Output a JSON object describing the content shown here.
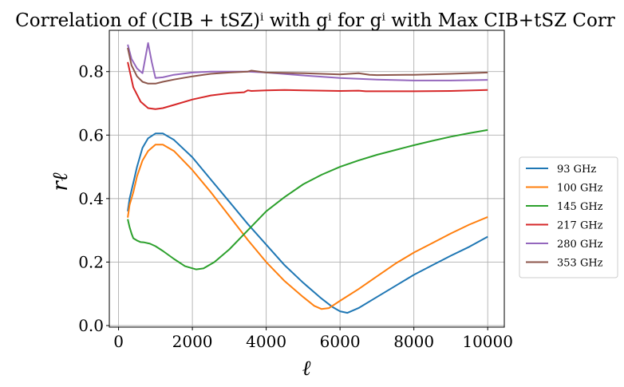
{
  "chart_data": {
    "type": "line",
    "title": "Correlation of (CIB + tSZ)ⁱ with gⁱ for gⁱ with Max CIB+tSZ Corr",
    "xlabel": "ℓ",
    "ylabel": "rℓ",
    "xlim": [
      -250,
      10450
    ],
    "ylim": [
      -0.005,
      0.93
    ],
    "xticks": [
      0,
      2000,
      4000,
      6000,
      8000,
      10000
    ],
    "xtick_labels": [
      "0",
      "2000",
      "4000",
      "6000",
      "8000",
      "10000"
    ],
    "yticks": [
      0.0,
      0.2,
      0.4,
      0.6,
      0.8
    ],
    "ytick_labels": [
      "0.0",
      "0.2",
      "0.4",
      "0.6",
      "0.8"
    ],
    "grid": true,
    "legend_position": "outside-right",
    "series": [
      {
        "name": "93 GHz",
        "color": "#1f77b4",
        "x": [
          250,
          300,
          400,
          500,
          650,
          800,
          1000,
          1200,
          1500,
          2000,
          2500,
          3000,
          3500,
          4000,
          4500,
          5000,
          5500,
          5800,
          6000,
          6200,
          6500,
          7000,
          7500,
          8000,
          8500,
          9000,
          9500,
          10000
        ],
        "y": [
          0.36,
          0.4,
          0.45,
          0.5,
          0.56,
          0.59,
          0.605,
          0.605,
          0.585,
          0.53,
          0.46,
          0.39,
          0.32,
          0.255,
          0.19,
          0.135,
          0.085,
          0.058,
          0.045,
          0.04,
          0.055,
          0.09,
          0.125,
          0.16,
          0.19,
          0.22,
          0.248,
          0.28
        ]
      },
      {
        "name": "100 GHz",
        "color": "#ff7f0e",
        "x": [
          250,
          300,
          400,
          500,
          650,
          800,
          1000,
          1200,
          1500,
          2000,
          2500,
          3000,
          3500,
          4000,
          4500,
          5000,
          5300,
          5500,
          5700,
          6000,
          6500,
          7000,
          7500,
          8000,
          8500,
          9000,
          9500,
          10000
        ],
        "y": [
          0.34,
          0.38,
          0.42,
          0.47,
          0.52,
          0.55,
          0.57,
          0.57,
          0.55,
          0.49,
          0.42,
          0.345,
          0.27,
          0.2,
          0.14,
          0.09,
          0.062,
          0.052,
          0.055,
          0.078,
          0.115,
          0.155,
          0.195,
          0.23,
          0.26,
          0.29,
          0.318,
          0.342
        ]
      },
      {
        "name": "145 GHz",
        "color": "#2ca02c",
        "x": [
          250,
          300,
          350,
          400,
          500,
          600,
          700,
          850,
          1000,
          1200,
          1500,
          1800,
          2100,
          2300,
          2600,
          3000,
          3500,
          4000,
          4500,
          5000,
          5500,
          6000,
          6500,
          7000,
          7500,
          8000,
          8500,
          9000,
          9500,
          10000
        ],
        "y": [
          0.335,
          0.31,
          0.29,
          0.275,
          0.268,
          0.263,
          0.262,
          0.258,
          0.25,
          0.235,
          0.21,
          0.187,
          0.177,
          0.18,
          0.2,
          0.24,
          0.3,
          0.36,
          0.405,
          0.445,
          0.475,
          0.5,
          0.52,
          0.538,
          0.553,
          0.568,
          0.582,
          0.595,
          0.606,
          0.616
        ]
      },
      {
        "name": "217 GHz",
        "color": "#d62728",
        "x": [
          250,
          400,
          600,
          800,
          1000,
          1200,
          1500,
          2000,
          2500,
          3000,
          3400,
          3500,
          3600,
          4000,
          4500,
          5000,
          6000,
          6500,
          6700,
          7000,
          8000,
          9000,
          10000
        ],
        "y": [
          0.83,
          0.75,
          0.705,
          0.685,
          0.682,
          0.685,
          0.695,
          0.712,
          0.725,
          0.732,
          0.735,
          0.741,
          0.739,
          0.741,
          0.742,
          0.741,
          0.739,
          0.74,
          0.738,
          0.738,
          0.738,
          0.739,
          0.742
        ]
      },
      {
        "name": "280 GHz",
        "color": "#9467bd",
        "x": [
          250,
          350,
          500,
          650,
          800,
          900,
          1000,
          1200,
          1500,
          2000,
          2500,
          3000,
          3500,
          4000,
          5000,
          6000,
          7000,
          8000,
          9000,
          10000
        ],
        "y": [
          0.885,
          0.84,
          0.81,
          0.795,
          0.89,
          0.83,
          0.78,
          0.782,
          0.79,
          0.797,
          0.8,
          0.8,
          0.8,
          0.797,
          0.788,
          0.78,
          0.775,
          0.772,
          0.772,
          0.774
        ]
      },
      {
        "name": "353 GHz",
        "color": "#8c564b",
        "x": [
          250,
          350,
          500,
          650,
          800,
          1000,
          1200,
          1500,
          2000,
          2500,
          3000,
          3500,
          3600,
          4000,
          5000,
          6000,
          6500,
          6800,
          7000,
          8000,
          9000,
          10000
        ],
        "y": [
          0.875,
          0.82,
          0.785,
          0.768,
          0.762,
          0.762,
          0.768,
          0.775,
          0.785,
          0.793,
          0.797,
          0.8,
          0.803,
          0.797,
          0.795,
          0.791,
          0.795,
          0.79,
          0.789,
          0.79,
          0.793,
          0.797
        ]
      }
    ]
  }
}
